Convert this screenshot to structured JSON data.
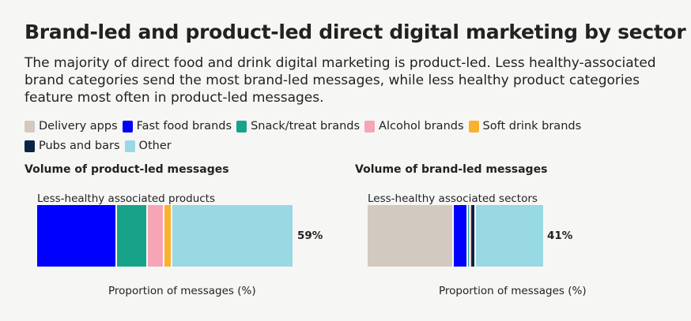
{
  "title": "Brand-led and product-led direct digital marketing by sector",
  "subtitle": "The majority of direct food and drink digital marketing is product-led. Less healthy-associated brand categories send the most brand-led messages, while less healthy product categories feature most often in product-led messages.",
  "legend": [
    {
      "label": "Delivery apps",
      "color": "#d2c9c0"
    },
    {
      "label": "Fast food brands",
      "color": "#0000ff"
    },
    {
      "label": "Snack/treat brands",
      "color": "#17a389"
    },
    {
      "label": "Alcohol brands",
      "color": "#f6a5b6"
    },
    {
      "label": "Soft drink brands",
      "color": "#fbb130"
    },
    {
      "label": "Pubs and bars",
      "color": "#0b2347"
    },
    {
      "label": "Other",
      "color": "#98d9e3"
    }
  ],
  "chart_data": [
    {
      "type": "bar",
      "orientation": "horizontal-stacked",
      "title": "Volume of product-led messages",
      "bracket_label": "Less-healthy associated products",
      "xlabel": "Proportion of messages (%)",
      "total_label": "59%",
      "series": [
        {
          "name": "Fast food brands",
          "value": 31
        },
        {
          "name": "Snack/treat brands",
          "value": 12
        },
        {
          "name": "Alcohol brands",
          "value": 6.5
        },
        {
          "name": "Soft drink brands",
          "value": 3
        },
        {
          "name": "Other",
          "value": 47.5
        }
      ]
    },
    {
      "type": "bar",
      "orientation": "horizontal-stacked",
      "title": "Volume of brand-led messages",
      "bracket_label": "Less-healthy associated sectors",
      "xlabel": "Proportion of messages (%)",
      "total_label": "41%",
      "series": [
        {
          "name": "Delivery apps",
          "value": 47
        },
        {
          "name": "Fast food brands",
          "value": 8
        },
        {
          "name": "Snack/treat brands",
          "value": 1
        },
        {
          "name": "Alcohol brands",
          "value": 0.7
        },
        {
          "name": "Pubs and bars",
          "value": 2.5
        },
        {
          "name": "Other",
          "value": 37.8
        }
      ]
    }
  ]
}
